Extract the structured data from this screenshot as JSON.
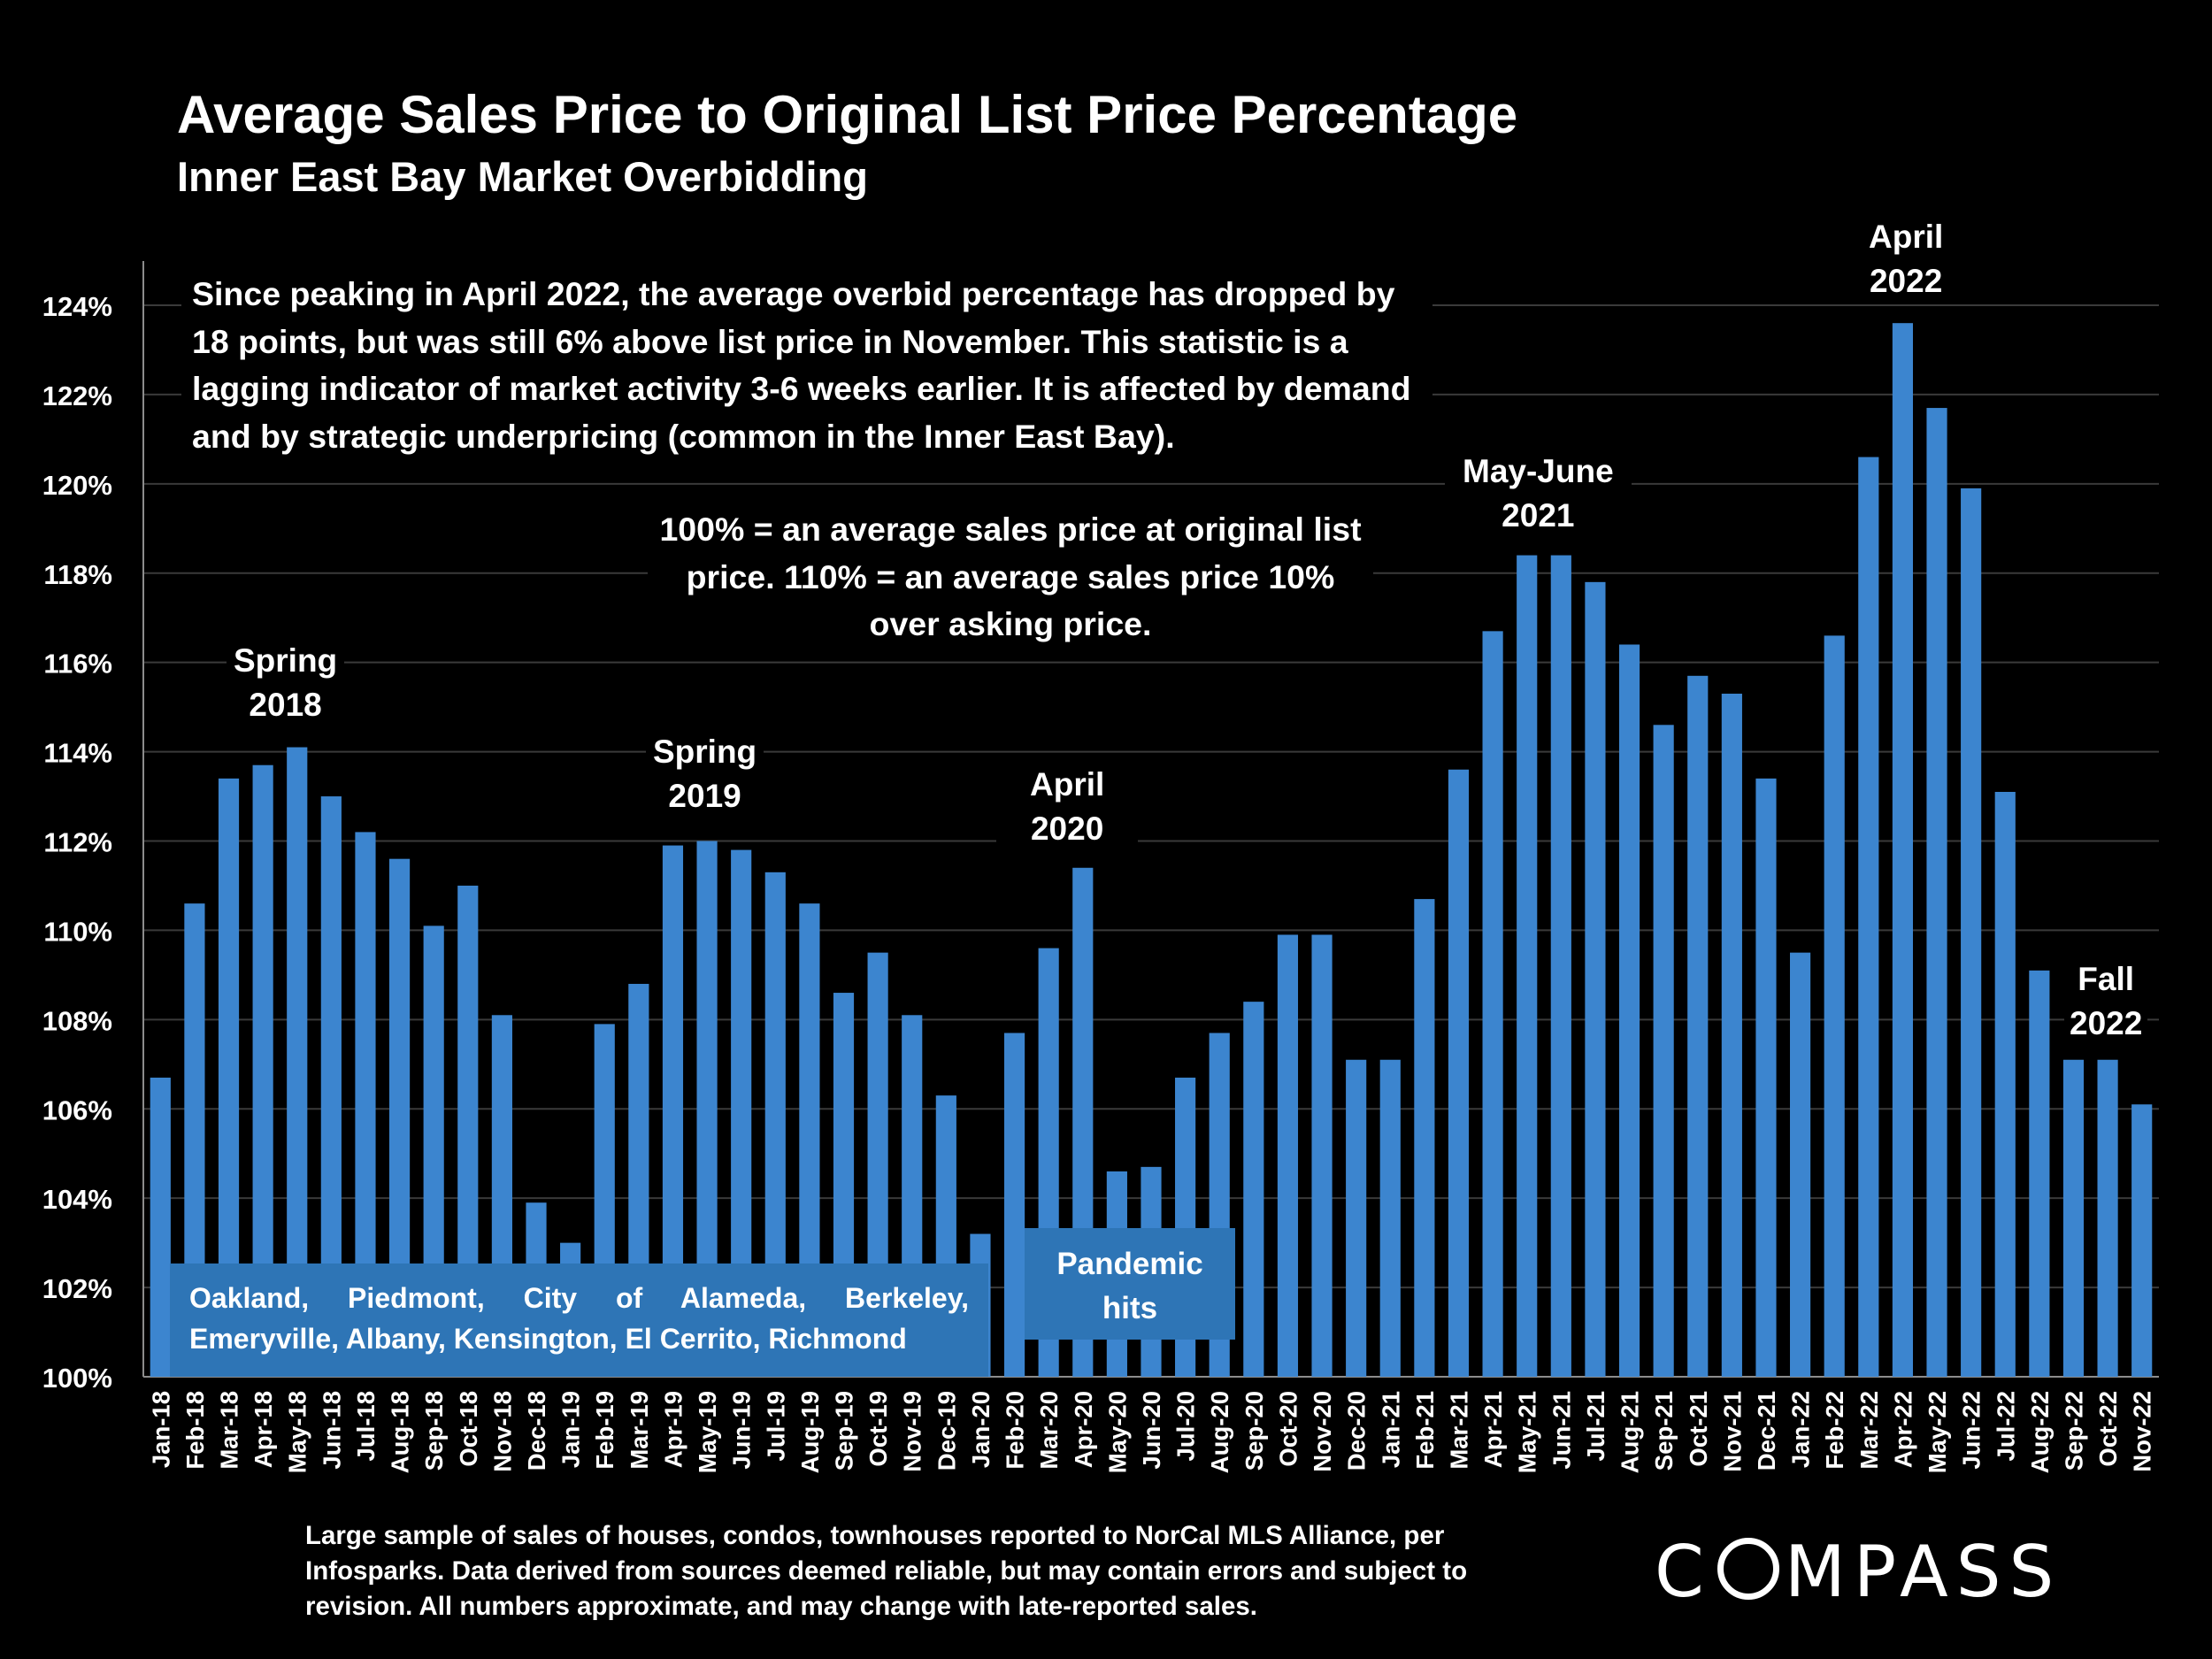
{
  "chart_data": {
    "type": "bar",
    "title": "Average Sales Price to Original List Price Percentage",
    "subtitle": "Inner East Bay Market Overbidding",
    "ylim": [
      100,
      125
    ],
    "yticks": [
      "100%",
      "102%",
      "104%",
      "106%",
      "108%",
      "110%",
      "112%",
      "114%",
      "116%",
      "118%",
      "120%",
      "122%",
      "124%"
    ],
    "ytick_values": [
      100,
      102,
      104,
      106,
      108,
      110,
      112,
      114,
      116,
      118,
      120,
      122,
      124
    ],
    "grid": true,
    "bar_color": "#3c85cf",
    "categories": [
      "Jan-18",
      "Feb-18",
      "Mar-18",
      "Apr-18",
      "May-18",
      "Jun-18",
      "Jul-18",
      "Aug-18",
      "Sep-18",
      "Oct-18",
      "Nov-18",
      "Dec-18",
      "Jan-19",
      "Feb-19",
      "Mar-19",
      "Apr-19",
      "May-19",
      "Jun-19",
      "Jul-19",
      "Aug-19",
      "Sep-19",
      "Oct-19",
      "Nov-19",
      "Dec-19",
      "Jan-20",
      "Feb-20",
      "Mar-20",
      "Apr-20",
      "May-20",
      "Jun-20",
      "Jul-20",
      "Aug-20",
      "Sep-20",
      "Oct-20",
      "Nov-20",
      "Dec-20",
      "Jan-21",
      "Feb-21",
      "Mar-21",
      "Apr-21",
      "May-21",
      "Jun-21",
      "Jul-21",
      "Aug-21",
      "Sep-21",
      "Oct-21",
      "Nov-21",
      "Dec-21",
      "Jan-22",
      "Feb-22",
      "Mar-22",
      "Apr-22",
      "May-22",
      "Jun-22",
      "Jul-22",
      "Aug-22",
      "Sep-22",
      "Oct-22",
      "Nov-22"
    ],
    "values": [
      106.7,
      110.6,
      113.4,
      113.7,
      114.1,
      113.0,
      112.2,
      111.6,
      110.1,
      111.0,
      108.1,
      103.9,
      103.0,
      107.9,
      108.8,
      111.9,
      112.0,
      111.8,
      111.3,
      110.6,
      108.6,
      109.5,
      108.1,
      106.3,
      103.2,
      107.7,
      109.6,
      111.4,
      104.6,
      104.7,
      106.7,
      107.7,
      108.4,
      109.9,
      109.9,
      107.1,
      107.1,
      110.7,
      113.6,
      116.7,
      118.4,
      118.4,
      117.8,
      116.4,
      114.6,
      115.7,
      115.3,
      113.4,
      109.5,
      116.6,
      120.6,
      123.6,
      121.7,
      119.9,
      113.1,
      109.1,
      107.1,
      107.1,
      106.1
    ],
    "annotations": [
      {
        "text": [
          "Spring",
          "2018"
        ]
      },
      {
        "text": [
          "Spring",
          "2019"
        ]
      },
      {
        "text": [
          "April",
          "2020"
        ]
      },
      {
        "text": [
          "May-June",
          "2021"
        ]
      },
      {
        "text": [
          "April",
          "2022"
        ]
      },
      {
        "text": [
          "Fall",
          "2022"
        ]
      }
    ]
  },
  "notes": {
    "main": "Since peaking in April 2022, the average overbid percentage has dropped by 18 points, but was still 6% above list price in November. This statistic is a lagging indicator of market activity 3-6 weeks earlier. It is affected by demand and by strategic underpricing (common in the Inner East Bay).",
    "definition": "100% = an average sales price at original list price. 110% = an average sales price 10% over asking price.",
    "cities": "Oakland, Piedmont, City of Alameda, Berkeley, Emeryville, Albany, Kensington, El Cerrito, Richmond",
    "pandemic": "Pandemic hits"
  },
  "footnote": "Large sample of sales of houses, condos, townhouses reported to NorCal MLS Alliance, per Infosparks. Data derived from sources deemed reliable, but may contain errors and subject to revision. All numbers approximate, and may change with late-reported sales.",
  "logo": {
    "left": "C",
    "right": "MPASS"
  }
}
